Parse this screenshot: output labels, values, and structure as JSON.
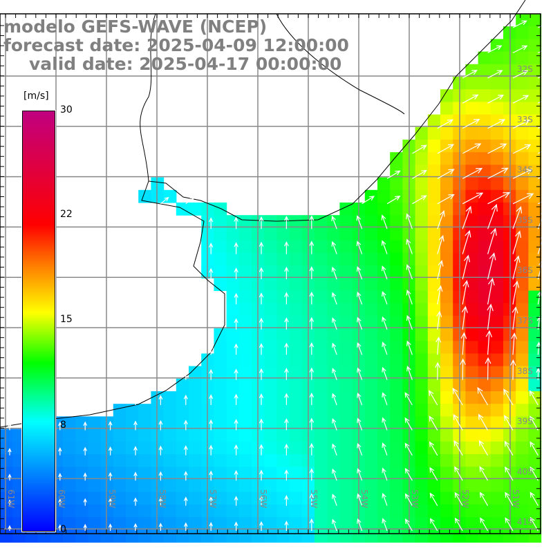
{
  "title": {
    "line1": "modelo GEFS-WAVE (NCEP)",
    "line2": "forecast date: 2025-04-09 12:00:00",
    "line3": "valid date: 2025-04-17 00:00:00"
  },
  "colorbar": {
    "unit": "[m/s]",
    "ticks": [
      "30",
      "22",
      "15",
      "8",
      "0"
    ],
    "min": 0,
    "max": 30,
    "colors": [
      "#0000ff",
      "#00ffff",
      "#00ff00",
      "#ffff00",
      "#ff8000",
      "#ff0000",
      "#c00080"
    ]
  },
  "axes": {
    "lon_labels": [
      "61W",
      "60W",
      "59W",
      "58W",
      "57W",
      "56W",
      "55W",
      "54W",
      "53W",
      "52W",
      "51W"
    ],
    "lat_labels": [
      "32S",
      "33S",
      "34S",
      "35S",
      "36S",
      "37S",
      "38S",
      "39S",
      "40S",
      "41S"
    ]
  }
}
